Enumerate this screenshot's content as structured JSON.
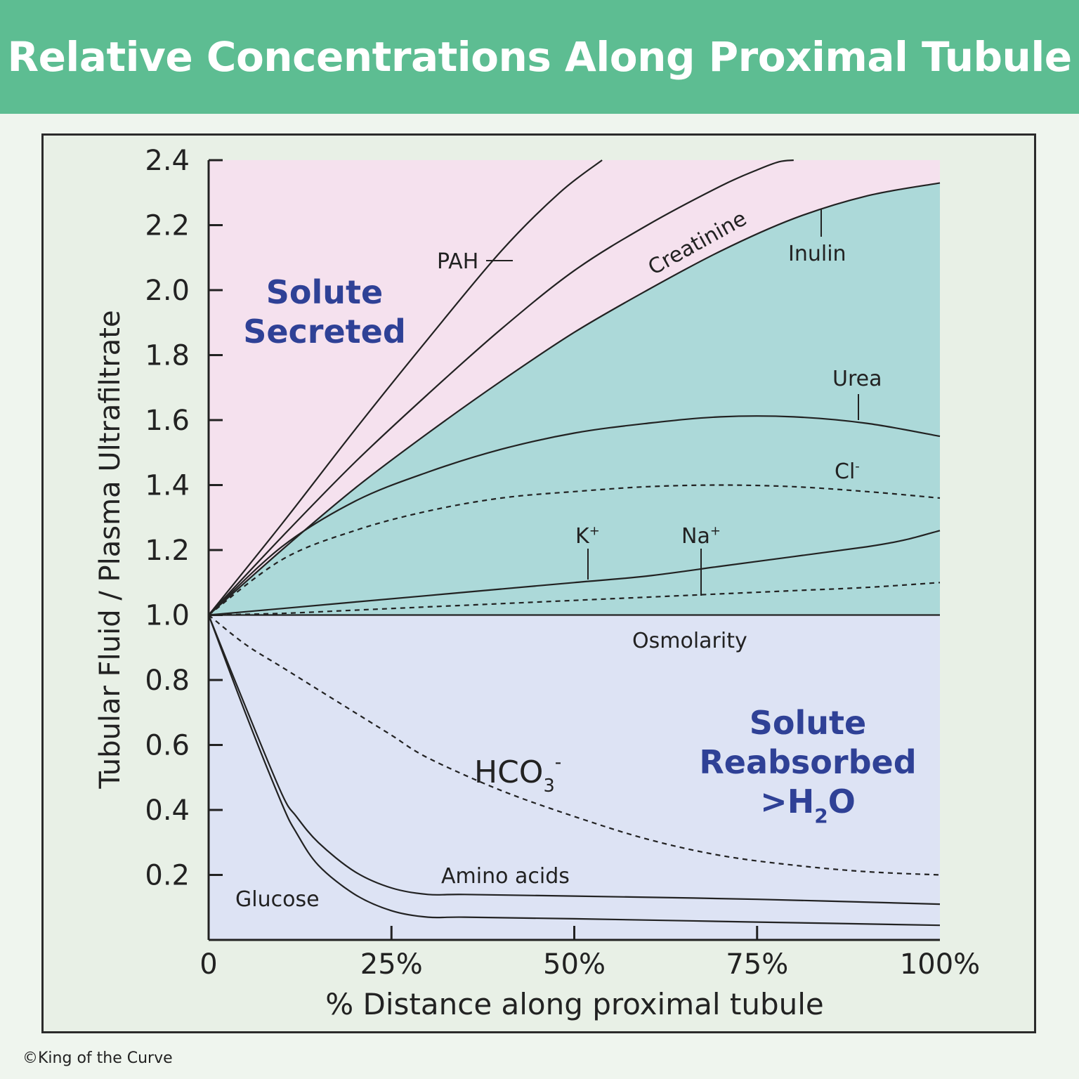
{
  "title": "Relative Concentrations Along Proximal Tubule",
  "copyright": "©King of the Curve",
  "colors": {
    "banner": "#5dbd92",
    "secreted_region": "#f5e1ee",
    "inulin_region": "#acd9d9",
    "reabsorbed_region": "#dde3f4",
    "region_label": "#2f4196",
    "line": "#222222"
  },
  "chart_data": {
    "type": "line",
    "xlabel": "% Distance along proximal tubule",
    "ylabel": "Tubular Fluid / Plasma Ultrafiltrate",
    "xlim": [
      0,
      100
    ],
    "ylim": [
      0,
      2.4
    ],
    "x_ticks": [
      {
        "value": 0,
        "label": "0"
      },
      {
        "value": 25,
        "label": "25%"
      },
      {
        "value": 50,
        "label": "50%"
      },
      {
        "value": 75,
        "label": "75%"
      },
      {
        "value": 100,
        "label": "100%"
      }
    ],
    "y_ticks": [
      {
        "value": 0.2,
        "label": "0.2"
      },
      {
        "value": 0.4,
        "label": "0.4"
      },
      {
        "value": 0.6,
        "label": "0.6"
      },
      {
        "value": 0.8,
        "label": "0.8"
      },
      {
        "value": 1.0,
        "label": "1.0"
      },
      {
        "value": 1.2,
        "label": "1.2"
      },
      {
        "value": 1.4,
        "label": "1.4"
      },
      {
        "value": 1.6,
        "label": "1.6"
      },
      {
        "value": 1.8,
        "label": "1.8"
      },
      {
        "value": 2.0,
        "label": "2.0"
      },
      {
        "value": 2.2,
        "label": "2.2"
      },
      {
        "value": 2.4,
        "label": "2.4"
      }
    ],
    "regions": [
      {
        "text": [
          "Solute",
          "Secreted"
        ]
      },
      {
        "text": [
          "Solute",
          "Reabsorbed",
          ">H",
          "2",
          "O"
        ]
      }
    ],
    "series": [
      {
        "name": "PAH",
        "style": "solid",
        "x": [
          0,
          10,
          20,
          30,
          40,
          48,
          53.8
        ],
        "y": [
          1.0,
          1.28,
          1.57,
          1.85,
          2.12,
          2.3,
          2.4
        ]
      },
      {
        "name": "Creatinine",
        "style": "solid",
        "x": [
          0,
          10,
          20,
          30,
          40,
          50,
          60,
          70,
          75,
          78,
          80
        ],
        "y": [
          1.0,
          1.24,
          1.47,
          1.68,
          1.88,
          2.06,
          2.2,
          2.32,
          2.37,
          2.395,
          2.4
        ]
      },
      {
        "name": "Inulin",
        "style": "solid",
        "x": [
          0,
          10,
          20,
          30,
          40,
          50,
          60,
          70,
          80,
          90,
          100
        ],
        "y": [
          1.0,
          1.2,
          1.39,
          1.56,
          1.72,
          1.87,
          2.0,
          2.12,
          2.22,
          2.29,
          2.33
        ]
      },
      {
        "name": "Urea",
        "style": "solid",
        "x": [
          0,
          10,
          20,
          30,
          40,
          50,
          60,
          70,
          80,
          90,
          100
        ],
        "y": [
          1.0,
          1.21,
          1.35,
          1.44,
          1.51,
          1.56,
          1.59,
          1.61,
          1.61,
          1.59,
          1.55
        ]
      },
      {
        "name": "Cl",
        "name_sup": "-",
        "style": "dashed",
        "x": [
          0,
          10,
          20,
          30,
          40,
          50,
          60,
          70,
          80,
          90,
          100
        ],
        "y": [
          1.0,
          1.17,
          1.26,
          1.32,
          1.36,
          1.38,
          1.395,
          1.4,
          1.395,
          1.38,
          1.36
        ]
      },
      {
        "name": "K",
        "name_sup": "+",
        "style": "solid",
        "x": [
          0,
          10,
          20,
          30,
          40,
          50,
          60,
          70,
          80,
          90,
          95,
          100
        ],
        "y": [
          1.0,
          1.02,
          1.04,
          1.06,
          1.08,
          1.1,
          1.12,
          1.15,
          1.18,
          1.21,
          1.23,
          1.26
        ]
      },
      {
        "name": "Na",
        "name_sup": "+",
        "style": "dashed",
        "x": [
          0,
          10,
          20,
          30,
          40,
          50,
          60,
          70,
          80,
          90,
          100
        ],
        "y": [
          1.0,
          1.005,
          1.015,
          1.025,
          1.035,
          1.045,
          1.055,
          1.065,
          1.075,
          1.085,
          1.1
        ]
      },
      {
        "name": "Osmolarity",
        "style": "solid",
        "x": [
          0,
          100
        ],
        "y": [
          1.0,
          1.0
        ]
      },
      {
        "name": "HCO",
        "name_sub": "3",
        "name_sup": "-",
        "style": "dashed",
        "x": [
          0,
          5,
          10,
          15,
          20,
          25,
          30,
          40,
          50,
          60,
          70,
          80,
          90,
          100
        ],
        "y": [
          1.0,
          0.91,
          0.84,
          0.77,
          0.7,
          0.63,
          0.56,
          0.46,
          0.38,
          0.31,
          0.26,
          0.23,
          0.21,
          0.2
        ]
      },
      {
        "name": "Amino acids",
        "style": "solid",
        "x": [
          0,
          5,
          10,
          12,
          15,
          20,
          25,
          30,
          35,
          50,
          75,
          100
        ],
        "y": [
          1.0,
          0.72,
          0.45,
          0.38,
          0.3,
          0.21,
          0.16,
          0.14,
          0.14,
          0.135,
          0.125,
          0.11
        ]
      },
      {
        "name": "Glucose",
        "style": "solid",
        "x": [
          0,
          5,
          10,
          12,
          15,
          20,
          25,
          30,
          35,
          50,
          75,
          100
        ],
        "y": [
          1.0,
          0.7,
          0.42,
          0.33,
          0.23,
          0.14,
          0.09,
          0.07,
          0.07,
          0.065,
          0.055,
          0.045
        ]
      }
    ]
  }
}
